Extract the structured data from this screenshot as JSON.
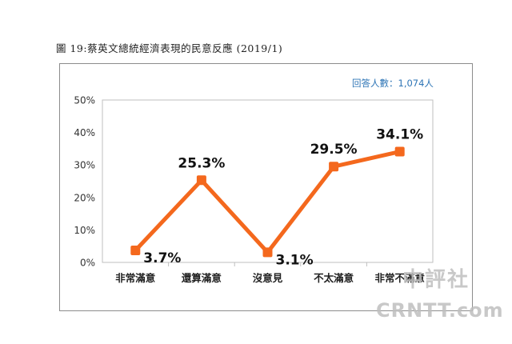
{
  "figure": {
    "title": "圖 19:蔡英文總統經濟表現的民意反應 (2019/1)",
    "respondents_label": "回答人數：1,074人"
  },
  "chart_data": {
    "type": "line",
    "categories": [
      "非常滿意",
      "還算滿意",
      "沒意見",
      "不太滿意",
      "非常不滿意"
    ],
    "series": [
      {
        "values": [
          3.7,
          25.3,
          3.1,
          29.5,
          34.1
        ]
      }
    ],
    "data_labels": [
      "3.7%",
      "25.3%",
      "3.1%",
      "29.5%",
      "34.1%"
    ],
    "ylim": [
      0,
      50
    ],
    "yticks": [
      0,
      10,
      20,
      30,
      40,
      50
    ],
    "ytick_labels": [
      "0%",
      "10%",
      "20%",
      "30%",
      "40%",
      "50%"
    ],
    "xlabel": "",
    "ylabel": "",
    "grid": false,
    "line_color": "#f4681d",
    "marker_color": "#f4681d"
  },
  "watermark": {
    "cn": "中評社",
    "en": "CRNTT.com"
  }
}
